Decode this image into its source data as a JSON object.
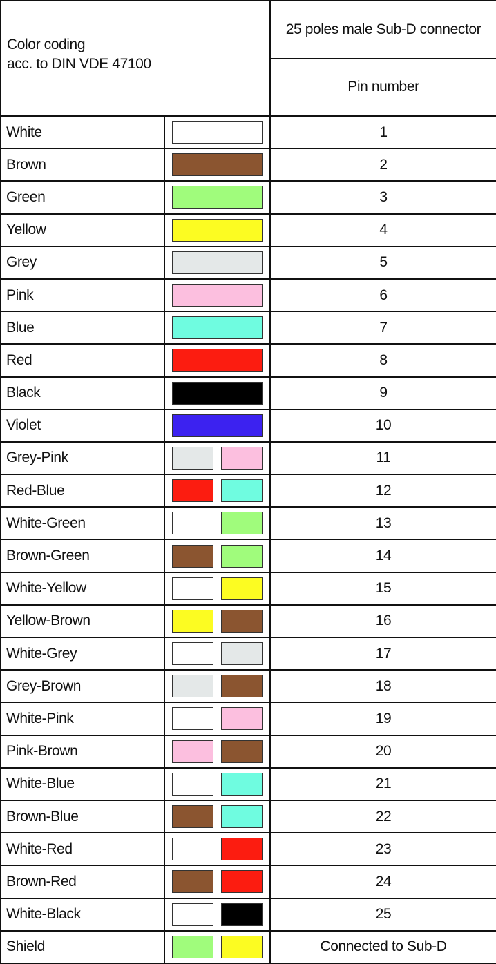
{
  "header": {
    "left_line1": "Color coding",
    "left_line2": "acc. to DIN VDE 47100",
    "connector": "25 poles male Sub-D connector",
    "pin_number": "Pin number"
  },
  "colors": {
    "White": "#ffffff",
    "Brown": "#8b5530",
    "Green": "#a0fc7c",
    "Yellow": "#fcfc22",
    "Grey": "#e4e8e8",
    "Pink": "#fcbfdf",
    "Blue": "#6ffce0",
    "Red": "#fc1c10",
    "Black": "#000000",
    "Violet": "#3c22f0"
  },
  "rows": [
    {
      "name": "White",
      "swatches": [
        "White"
      ],
      "pin": "1"
    },
    {
      "name": "Brown",
      "swatches": [
        "Brown"
      ],
      "pin": "2"
    },
    {
      "name": "Green",
      "swatches": [
        "Green"
      ],
      "pin": "3"
    },
    {
      "name": "Yellow",
      "swatches": [
        "Yellow"
      ],
      "pin": "4"
    },
    {
      "name": "Grey",
      "swatches": [
        "Grey"
      ],
      "pin": "5"
    },
    {
      "name": "Pink",
      "swatches": [
        "Pink"
      ],
      "pin": "6"
    },
    {
      "name": "Blue",
      "swatches": [
        "Blue"
      ],
      "pin": "7"
    },
    {
      "name": "Red",
      "swatches": [
        "Red"
      ],
      "pin": "8"
    },
    {
      "name": "Black",
      "swatches": [
        "Black"
      ],
      "pin": "9"
    },
    {
      "name": "Violet",
      "swatches": [
        "Violet"
      ],
      "pin": "10"
    },
    {
      "name": "Grey-Pink",
      "swatches": [
        "Grey",
        "Pink"
      ],
      "pin": "11"
    },
    {
      "name": "Red-Blue",
      "swatches": [
        "Red",
        "Blue"
      ],
      "pin": "12"
    },
    {
      "name": "White-Green",
      "swatches": [
        "White",
        "Green"
      ],
      "pin": "13"
    },
    {
      "name": "Brown-Green",
      "swatches": [
        "Brown",
        "Green"
      ],
      "pin": "14"
    },
    {
      "name": "White-Yellow",
      "swatches": [
        "White",
        "Yellow"
      ],
      "pin": "15"
    },
    {
      "name": "Yellow-Brown",
      "swatches": [
        "Yellow",
        "Brown"
      ],
      "pin": "16"
    },
    {
      "name": "White-Grey",
      "swatches": [
        "White",
        "Grey"
      ],
      "pin": "17"
    },
    {
      "name": "Grey-Brown",
      "swatches": [
        "Grey",
        "Brown"
      ],
      "pin": "18"
    },
    {
      "name": "White-Pink",
      "swatches": [
        "White",
        "Pink"
      ],
      "pin": "19"
    },
    {
      "name": "Pink-Brown",
      "swatches": [
        "Pink",
        "Brown"
      ],
      "pin": "20"
    },
    {
      "name": "White-Blue",
      "swatches": [
        "White",
        "Blue"
      ],
      "pin": "21"
    },
    {
      "name": "Brown-Blue",
      "swatches": [
        "Brown",
        "Blue"
      ],
      "pin": "22"
    },
    {
      "name": "White-Red",
      "swatches": [
        "White",
        "Red"
      ],
      "pin": "23"
    },
    {
      "name": "Brown-Red",
      "swatches": [
        "Brown",
        "Red"
      ],
      "pin": "24"
    },
    {
      "name": "White-Black",
      "swatches": [
        "White",
        "Black"
      ],
      "pin": "25"
    },
    {
      "name": "Shield",
      "swatches": [
        "Green",
        "Yellow"
      ],
      "pin": "Connected to Sub-D"
    }
  ]
}
